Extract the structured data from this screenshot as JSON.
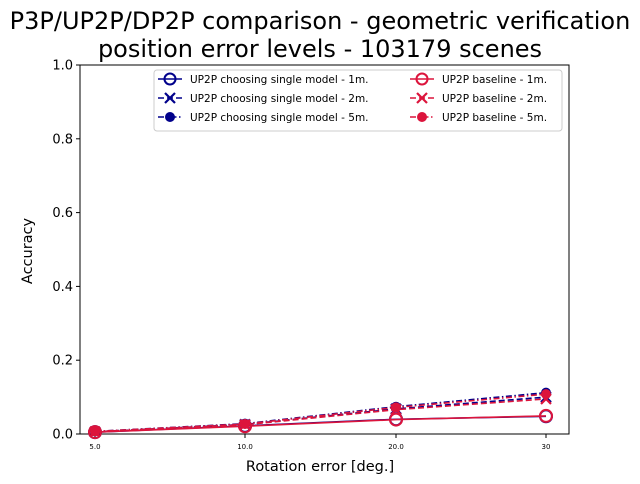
{
  "chart_data": {
    "type": "line",
    "title_line1": "P3P/UP2P/DP2P comparison - geometric verification",
    "title_line2": "position error levels - 103179 scenes",
    "xlabel": "Rotation error [deg.]",
    "ylabel": "Accuracy",
    "categories": [
      "5.0",
      "10.0",
      "20.0",
      "30"
    ],
    "ylim": [
      0,
      1.0
    ],
    "yticks": [
      "0.0",
      "0.2",
      "0.4",
      "0.6",
      "0.8",
      "1.0"
    ],
    "grid": false,
    "legend_position": "top-right",
    "series": [
      {
        "name": "UP2P choosing single model - 1m.",
        "color": "#00008b",
        "marker": "circle-open",
        "linestyle": "solid",
        "values": [
          0.005,
          0.022,
          0.04,
          0.048
        ]
      },
      {
        "name": "UP2P choosing single model - 2m.",
        "color": "#00008b",
        "marker": "x",
        "linestyle": "dashed",
        "values": [
          0.006,
          0.026,
          0.068,
          0.1
        ]
      },
      {
        "name": "UP2P choosing single model - 5m.",
        "color": "#00008b",
        "marker": "dot",
        "linestyle": "dashdot",
        "values": [
          0.007,
          0.028,
          0.074,
          0.112
        ]
      },
      {
        "name": "UP2P baseline - 1m.",
        "color": "#dc143c",
        "marker": "circle-open",
        "linestyle": "solid",
        "values": [
          0.005,
          0.021,
          0.039,
          0.049
        ]
      },
      {
        "name": "UP2P baseline - 2m.",
        "color": "#dc143c",
        "marker": "x",
        "linestyle": "dashed",
        "values": [
          0.006,
          0.025,
          0.066,
          0.095
        ]
      },
      {
        "name": "UP2P baseline - 5m.",
        "color": "#dc143c",
        "marker": "dot",
        "linestyle": "dashdot",
        "values": [
          0.007,
          0.027,
          0.072,
          0.108
        ]
      }
    ]
  }
}
